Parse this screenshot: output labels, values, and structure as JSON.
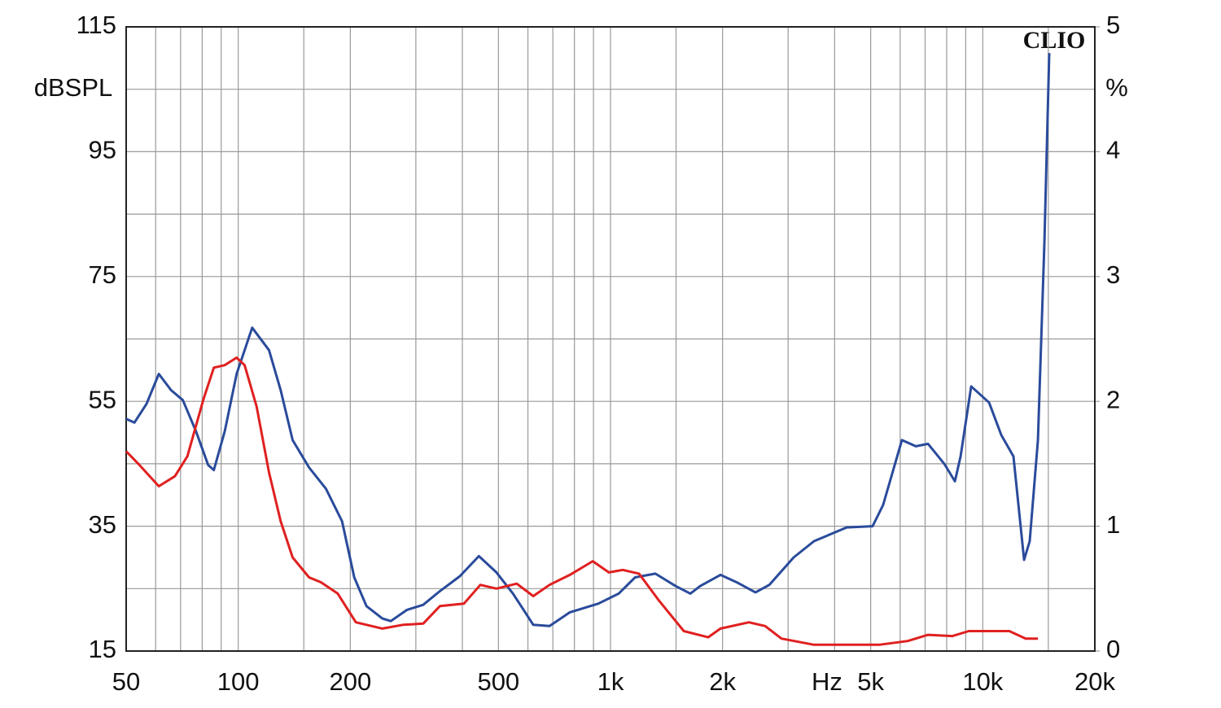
{
  "chart_data": {
    "type": "line",
    "logo": "CLIO",
    "y_label": "dBSPL",
    "y2_label": "%",
    "x_label": "Hz",
    "xlim": [
      50,
      20000
    ],
    "x_log": true,
    "xticks": [
      50,
      100,
      200,
      500,
      {
        "value": 1000,
        "label": "1k"
      },
      {
        "value": 2000,
        "label": "2k"
      },
      {
        "value": 5000,
        "label": "5k"
      },
      {
        "value": 10000,
        "label": "10k"
      },
      {
        "value": 20000,
        "label": "20k"
      }
    ],
    "x_minor_ticks": [
      60,
      70,
      80,
      90,
      150,
      300,
      400,
      600,
      700,
      800,
      900,
      1500,
      3000,
      4000,
      6000,
      7000,
      8000,
      9000,
      15000
    ],
    "ylim": [
      15,
      115
    ],
    "yticks": [
      15,
      35,
      55,
      75,
      95,
      115
    ],
    "y_minor_ticks": [
      25,
      45,
      65,
      85,
      105
    ],
    "y2lim": [
      0,
      5
    ],
    "y2ticks": [
      0,
      1,
      2,
      3,
      4,
      5
    ],
    "grid": true,
    "series": [
      {
        "color": "#2a4b9b",
        "axis": "y2",
        "x": [
          50,
          52.6,
          56.7,
          61.2,
          66,
          71,
          77,
          83,
          86,
          92,
          99,
          109,
          121,
          130,
          140,
          155,
          172,
          190,
          205,
          221,
          244,
          257,
          284,
          314,
          348,
          394,
          443,
          494,
          547,
          620,
          686,
          778,
          928,
          1052,
          1164,
          1320,
          1497,
          1639,
          1741,
          1974,
          2184,
          2451,
          2671,
          3105,
          3521,
          4308,
          5060,
          5400,
          6066,
          6610,
          7127,
          7881,
          8415,
          8718,
          9307,
          10400,
          11215,
          12090,
          12912,
          13370,
          14064,
          14640,
          15090
        ],
        "values": [
          1.86,
          1.83,
          1.98,
          2.22,
          2.09,
          2.01,
          1.76,
          1.49,
          1.45,
          1.76,
          2.22,
          2.59,
          2.41,
          2.09,
          1.69,
          1.47,
          1.3,
          1.04,
          0.59,
          0.36,
          0.26,
          0.24,
          0.33,
          0.37,
          0.48,
          0.6,
          0.76,
          0.63,
          0.46,
          0.21,
          0.2,
          0.31,
          0.38,
          0.46,
          0.59,
          0.62,
          0.52,
          0.46,
          0.52,
          0.61,
          0.55,
          0.47,
          0.53,
          0.75,
          0.88,
          0.99,
          1.0,
          1.17,
          1.69,
          1.64,
          1.66,
          1.5,
          1.36,
          1.56,
          2.12,
          1.99,
          1.73,
          1.56,
          0.73,
          0.88,
          1.69,
          3.26,
          4.79
        ]
      },
      {
        "color": "#e02020",
        "axis": "y2",
        "x": [
          50,
          53.9,
          61.2,
          67.6,
          73,
          80.7,
          86,
          92,
          99,
          104,
          112,
          121,
          130,
          140,
          155,
          167,
          185,
          207,
          244,
          277,
          314,
          348,
          404,
          447,
          494,
          560,
          620,
          686,
          778,
          896,
          990,
          1079,
          1193,
          1353,
          1574,
          1830,
          1974,
          2354,
          2603,
          2879,
          3521,
          4308,
          5270,
          6285,
          7127,
          8290,
          9170,
          11790,
          13040,
          14064
        ],
        "values": [
          1.6,
          1.5,
          1.32,
          1.4,
          1.56,
          2.02,
          2.27,
          2.29,
          2.35,
          2.29,
          1.96,
          1.43,
          1.04,
          0.75,
          0.59,
          0.55,
          0.46,
          0.23,
          0.18,
          0.21,
          0.22,
          0.36,
          0.38,
          0.53,
          0.5,
          0.54,
          0.44,
          0.53,
          0.61,
          0.72,
          0.63,
          0.65,
          0.62,
          0.4,
          0.16,
          0.11,
          0.18,
          0.23,
          0.2,
          0.1,
          0.05,
          0.05,
          0.05,
          0.08,
          0.13,
          0.12,
          0.16,
          0.16,
          0.1,
          0.1
        ]
      }
    ]
  }
}
